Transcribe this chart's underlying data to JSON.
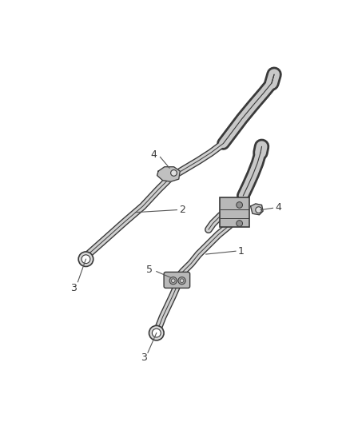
{
  "bg_color": "#ffffff",
  "line_color": "#3a3a3a",
  "fig_width": 4.38,
  "fig_height": 5.33,
  "tube_outer_lw": 7,
  "tube_fill_lw": 5,
  "tube_inner_lw": 0.7,
  "tube_fill_color": "#d0d0d0",
  "hose_outer_lw": 10,
  "hose_fill_lw": 7
}
